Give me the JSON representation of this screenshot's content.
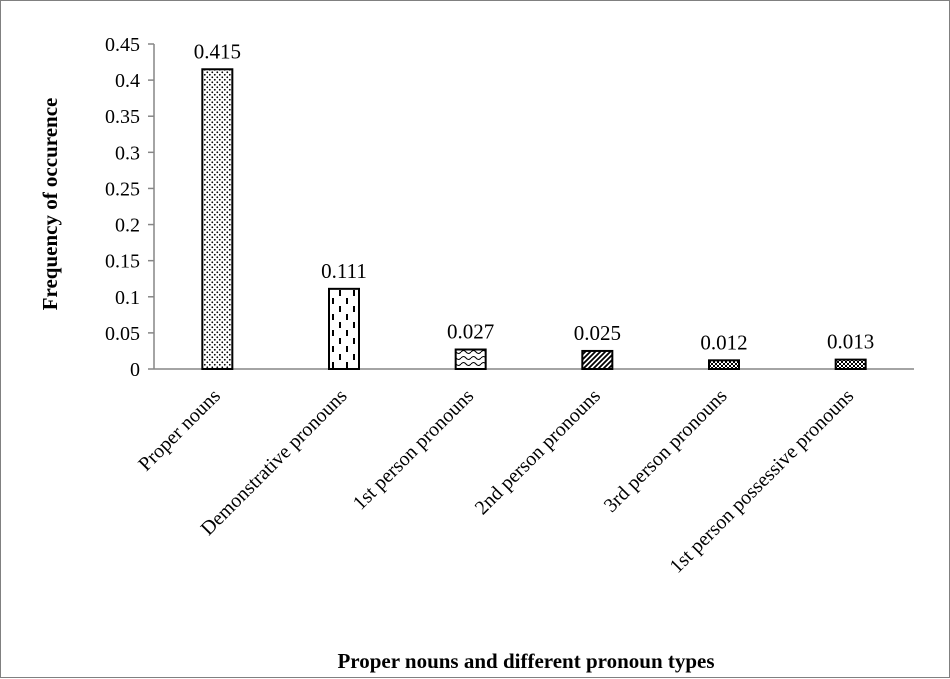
{
  "chart_data": {
    "type": "bar",
    "title": "",
    "xlabel": "Proper nouns and different pronoun types",
    "ylabel": "Frequency of occurence",
    "categories": [
      "Proper nouns",
      "Demonstrative pronouns",
      "1st person pronouns",
      "2nd person pronouns",
      "3rd person pronouns",
      "1st person possessive pronouns"
    ],
    "values": [
      0.415,
      0.111,
      0.027,
      0.025,
      0.012,
      0.013
    ],
    "data_labels": [
      "0.415",
      "0.111",
      "0.027",
      "0.025",
      "0.012",
      "0.013"
    ],
    "patterns": [
      "dots",
      "dashes",
      "waves",
      "diagonal-stripes",
      "checker",
      "checker"
    ],
    "ylim": [
      0,
      0.45
    ],
    "yticks": [
      0,
      0.05,
      0.1,
      0.15,
      0.2,
      0.25,
      0.3,
      0.35,
      0.4,
      0.45
    ],
    "ytick_labels": [
      "0",
      "0.05",
      "0.1",
      "0.15",
      "0.2",
      "0.25",
      "0.3",
      "0.35",
      "0.4",
      "0.45"
    ],
    "grid": false,
    "legend": "none",
    "colors": {
      "bar_fill": "#ffffff",
      "bar_edge": "#000000",
      "axis": "#868686",
      "frame": "#808080"
    }
  }
}
